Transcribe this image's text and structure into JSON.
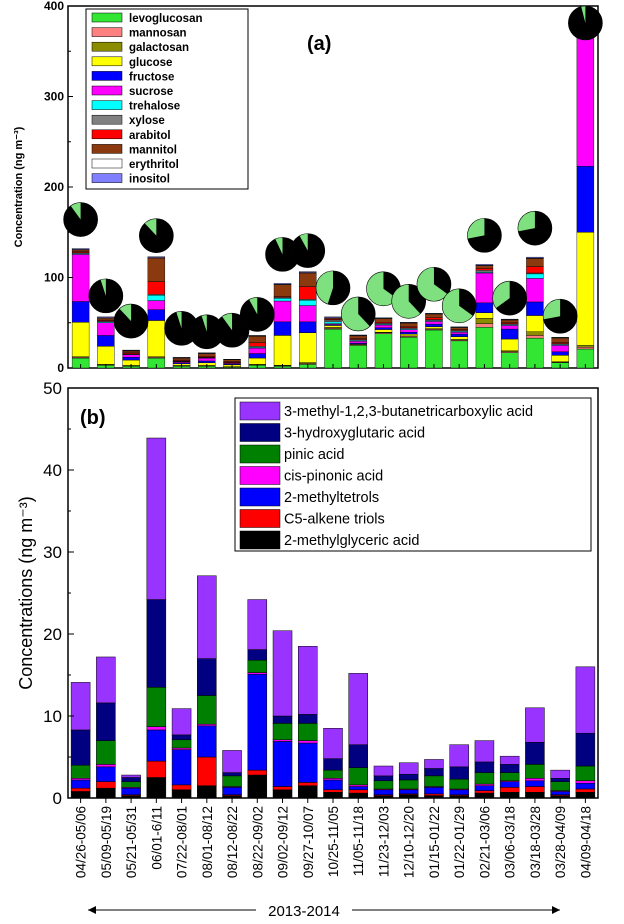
{
  "chart_data": [
    {
      "type": "bar",
      "stacked": true,
      "panel_label": "(a)",
      "ylabel": "Concentration (ng m⁻³)",
      "ylim": [
        0,
        400
      ],
      "yticks": [
        0,
        100,
        200,
        300,
        400
      ],
      "legend_placement": "top-left",
      "series_colors": [
        "#33e633",
        "#ff8080",
        "#8c8c00",
        "#ffff00",
        "#0000ff",
        "#ff00ff",
        "#00ffff",
        "#808080",
        "#ff0000",
        "#8b3a0f",
        "#ffffff",
        "#7f7fff"
      ],
      "series": [
        {
          "name": "levoglucosan",
          "values": [
            11,
            3,
            2,
            11,
            2,
            2,
            1,
            3,
            2,
            4,
            43,
            25,
            38,
            34,
            42,
            30,
            45,
            17,
            33,
            6,
            21
          ]
        },
        {
          "name": "mannosan",
          "values": [
            1,
            0.5,
            0.5,
            1,
            0.5,
            0.5,
            0.3,
            0.5,
            0.5,
            1,
            1,
            1,
            1,
            1,
            1,
            1,
            4,
            1,
            3,
            0.5,
            2
          ]
        },
        {
          "name": "galactosan",
          "values": [
            0.5,
            0.5,
            0.3,
            0.5,
            0.3,
            0.3,
            0.2,
            0.5,
            0.5,
            1,
            1,
            0.5,
            0.5,
            0.5,
            0.5,
            0.5,
            6,
            1,
            4,
            0.5,
            2
          ]
        },
        {
          "name": "glucose",
          "values": [
            38,
            20,
            6,
            40,
            2,
            3,
            2,
            7,
            33,
            33,
            2,
            0,
            3,
            2,
            2,
            3,
            6,
            13,
            18,
            7,
            125
          ]
        },
        {
          "name": "fructose",
          "values": [
            23,
            12,
            3,
            12,
            1,
            2,
            1,
            5,
            15,
            12,
            1,
            1,
            2,
            2,
            3,
            3,
            11,
            11,
            15,
            4,
            73
          ]
        },
        {
          "name": "sucrose",
          "values": [
            52,
            14,
            3,
            10,
            1,
            3,
            1,
            6,
            23,
            18,
            1,
            2,
            3,
            3,
            3,
            2,
            33,
            4,
            26,
            7,
            142
          ]
        },
        {
          "name": "trehalose",
          "values": [
            1,
            1,
            0.5,
            6,
            0.5,
            0.5,
            0.3,
            1,
            3,
            6,
            2,
            1,
            1,
            1,
            1,
            1,
            1,
            1,
            5,
            1,
            0.5
          ]
        },
        {
          "name": "xylose",
          "values": [
            1,
            1,
            0.5,
            1,
            0.5,
            0.5,
            0.3,
            1,
            1,
            1,
            2,
            1,
            1,
            1,
            1,
            1,
            2,
            1,
            1,
            1,
            1
          ]
        },
        {
          "name": "arabitol",
          "values": [
            1,
            1,
            1,
            14,
            1,
            1,
            1,
            4,
            1,
            14,
            1,
            1,
            1,
            1,
            2,
            1,
            2,
            1,
            7,
            1,
            2
          ]
        },
        {
          "name": "mannitol",
          "values": [
            2,
            2,
            2,
            26,
            2,
            3,
            2,
            7,
            13,
            15,
            1,
            3,
            4,
            4,
            4,
            2,
            3,
            3,
            9,
            5,
            3
          ]
        },
        {
          "name": "erythritol",
          "values": [
            0.5,
            0.5,
            0.5,
            0.5,
            0.5,
            0.5,
            0.3,
            0.5,
            0.5,
            0.5,
            0.5,
            0.5,
            0.5,
            0.5,
            0.5,
            0.5,
            0.5,
            0.5,
            0.5,
            0.5,
            0.5
          ]
        },
        {
          "name": "inositol",
          "values": [
            1,
            1,
            0.5,
            1,
            0.5,
            0.5,
            0.3,
            0.5,
            1,
            1,
            1,
            0.5,
            0.5,
            0.5,
            0.5,
            0.5,
            1,
            0.5,
            1,
            0.5,
            1
          ]
        }
      ],
      "pie_dark_fraction": [
        0.9,
        0.95,
        0.88,
        0.88,
        0.95,
        0.95,
        0.9,
        0.92,
        0.93,
        0.92,
        0.55,
        0.38,
        0.35,
        0.38,
        0.35,
        0.35,
        0.72,
        0.65,
        0.72,
        0.72,
        0.96
      ],
      "pie_colors": {
        "dark": "#000000",
        "light": "#7fe07f"
      }
    },
    {
      "type": "bar",
      "stacked": true,
      "panel_label": "(b)",
      "ylabel": "Concentrations (ng m⁻³)",
      "ylim": [
        0,
        50
      ],
      "yticks": [
        0,
        10,
        20,
        30,
        40,
        50
      ],
      "legend_placement": "top-right",
      "categories": [
        "04/26-05/06",
        "05/09-05/19",
        "05/21-05/31",
        "06/01-6/11",
        "07/22-08/01",
        "08/01-08/12",
        "08/12-08/22",
        "08/22-09/02",
        "09/02-09/12",
        "09/27-10/07",
        "10/25-11/05",
        "11/05-11/18",
        "11/23-12/03",
        "12/10-12/20",
        "01/15-01/22",
        "01/22-01/29",
        "02/21-03/06",
        "03/06-03/18",
        "03/18-03/28",
        "03/28-04/09",
        "04/09-04/18"
      ],
      "xlabel": "2013-2014",
      "series_colors": [
        "#000000",
        "#ff0000",
        "#0000ff",
        "#ff00ff",
        "#008000",
        "#000080",
        "#9933ff"
      ],
      "series": [
        {
          "name": "2-methylglyceric acid",
          "values": [
            0.8,
            1.2,
            0.3,
            2.5,
            1.0,
            1.5,
            0.3,
            2.8,
            1.0,
            1.5,
            0.7,
            0.6,
            0.3,
            0.4,
            0.3,
            0.3,
            0.6,
            0.7,
            0.7,
            0.3,
            0.7
          ]
        },
        {
          "name": "C5-alkene triols",
          "values": [
            0.4,
            0.8,
            0.1,
            2.0,
            0.6,
            3.5,
            0.1,
            0.6,
            0.4,
            0.4,
            0.3,
            0.4,
            0.1,
            0.1,
            0.2,
            0.1,
            0.3,
            0.6,
            0.7,
            0.1,
            0.4
          ]
        },
        {
          "name": "2-methyltetrols",
          "values": [
            1.0,
            1.8,
            0.8,
            3.8,
            4.3,
            3.8,
            0.9,
            11.7,
            5.5,
            4.8,
            1.2,
            0.4,
            0.6,
            0.5,
            0.8,
            0.6,
            0.6,
            0.7,
            0.7,
            0.4,
            0.7
          ]
        },
        {
          "name": "cis-pinonic acid",
          "values": [
            0.2,
            0.3,
            0.1,
            0.4,
            0.2,
            0.2,
            0.1,
            0.2,
            0.2,
            0.3,
            0.2,
            0.2,
            0.1,
            0.1,
            0.1,
            0.1,
            0.2,
            0.1,
            0.3,
            0.1,
            0.3
          ]
        },
        {
          "name": "pinic acid",
          "values": [
            1.6,
            2.9,
            0.7,
            4.8,
            1.0,
            3.5,
            1.3,
            1.5,
            2.0,
            2.1,
            1.0,
            2.1,
            1.0,
            1.1,
            1.3,
            1.2,
            1.4,
            1.0,
            1.7,
            1.1,
            1.8
          ]
        },
        {
          "name": "3-hydroxyglutaric acid",
          "values": [
            4.3,
            4.6,
            0.5,
            10.7,
            0.6,
            4.5,
            0.4,
            1.3,
            0.9,
            1.1,
            1.4,
            2.8,
            0.6,
            0.7,
            0.9,
            1.5,
            1.3,
            1.0,
            2.7,
            0.4,
            4.0
          ]
        },
        {
          "name": "3-methyl-1,2,3-butanetricarboxylic acid",
          "values": [
            5.8,
            5.6,
            0.3,
            19.7,
            3.2,
            10.1,
            2.7,
            6.1,
            10.4,
            8.3,
            3.7,
            8.7,
            1.2,
            1.4,
            1.1,
            2.7,
            2.6,
            1.0,
            4.2,
            1.0,
            8.1
          ]
        }
      ]
    }
  ]
}
